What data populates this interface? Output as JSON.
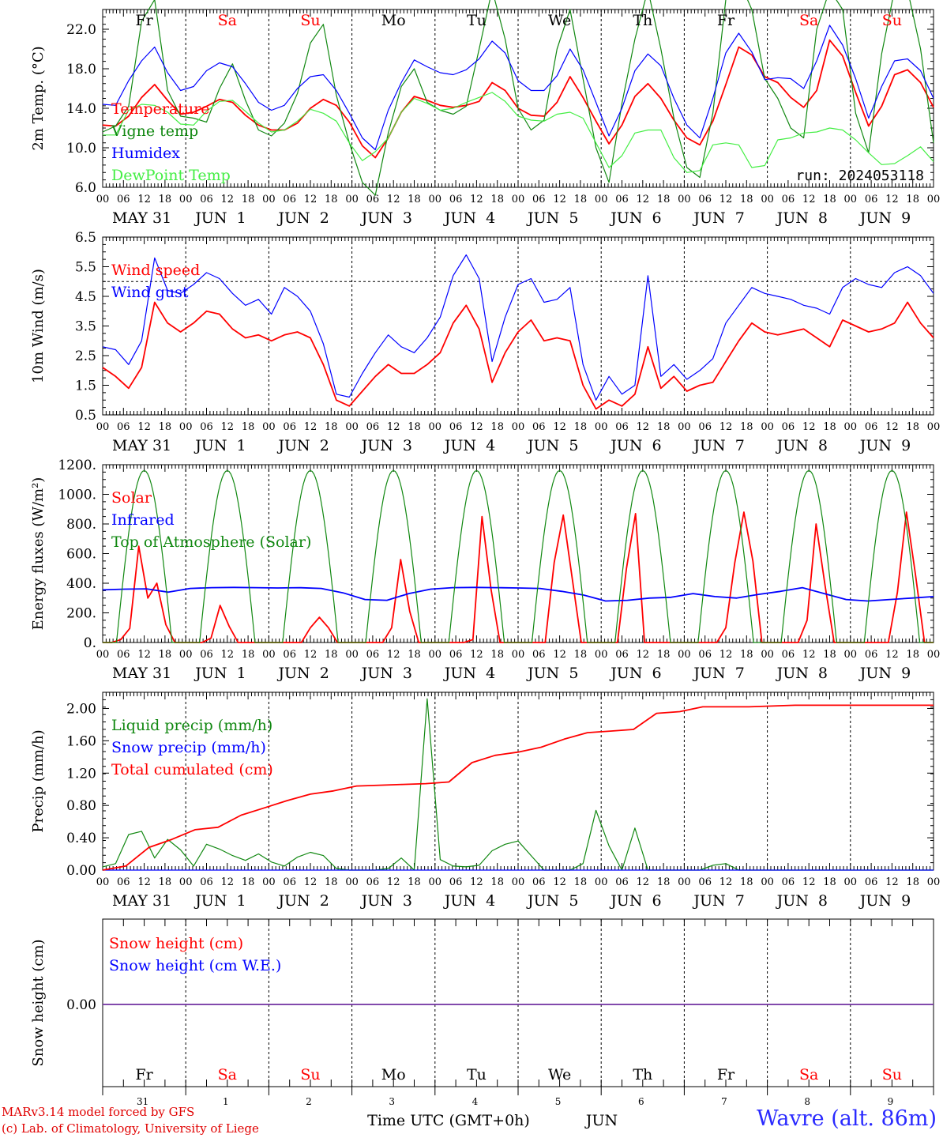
{
  "days": {
    "weekday": [
      "Fr",
      "Sa",
      "Su",
      "Mo",
      "Tu",
      "We",
      "Th",
      "Fr",
      "Sa",
      "Su"
    ],
    "weekend": [
      false,
      true,
      true,
      false,
      false,
      false,
      false,
      false,
      true,
      true
    ],
    "dates": [
      "MAY 31",
      "JUN  1",
      "JUN  2",
      "JUN  3",
      "JUN  4",
      "JUN  5",
      "JUN  6",
      "JUN  7",
      "JUN  8",
      "JUN  9"
    ],
    "daynum": [
      "31",
      "1",
      "2",
      "3",
      "4",
      "5",
      "6",
      "7",
      "8",
      "9"
    ],
    "hours": [
      "00",
      "06",
      "12",
      "18"
    ],
    "end_hour": "00"
  },
  "colors": {
    "red": "#ff0000",
    "green": "#118811",
    "blue": "#0000ff",
    "lightgreen": "#44ee44",
    "purple": "#7030a0",
    "axis": "#000000",
    "weekend_label": "#ff0000"
  },
  "run_label": "run: 2024053118",
  "footer": {
    "xlabel": "Time UTC (GMT+0h)",
    "month": "JUN",
    "credit_line1": "MARv3.14 model forced by GFS",
    "credit_line2": "(c) Lab. of Climatology, University of Liege",
    "location": "Wavre (alt. 86m)"
  },
  "chart_data": [
    {
      "type": "line",
      "ylabel": "2m Temp. (°C)",
      "ylim": [
        6.0,
        24.0
      ],
      "yticks": [
        "6.0",
        "10.0",
        "14.0",
        "18.0",
        "22.0"
      ],
      "grid": false,
      "series": [
        {
          "name": "Temperature",
          "color": "red",
          "values": [
            12.3,
            12.2,
            13.2,
            15.1,
            16.4,
            14.8,
            13.4,
            13.6,
            14.2,
            14.9,
            14.6,
            13.3,
            12.3,
            11.8,
            11.8,
            12.5,
            14.0,
            14.9,
            14.3,
            12.6,
            10.2,
            9.0,
            11.0,
            13.6,
            15.2,
            14.8,
            14.3,
            14.1,
            14.3,
            14.7,
            16.6,
            15.8,
            14.0,
            13.3,
            13.2,
            14.6,
            17.2,
            15.1,
            12.7,
            10.4,
            12.3,
            15.2,
            16.5,
            15.0,
            12.8,
            11.0,
            10.3,
            12.7,
            16.4,
            20.2,
            19.4,
            17.2,
            16.6,
            15.1,
            14.1,
            15.8,
            20.9,
            19.3,
            15.6,
            12.2,
            14.2,
            17.4,
            17.9,
            16.6,
            14.1
          ]
        },
        {
          "name": "Vigne temp",
          "color": "green",
          "values": [
            11.6,
            12.2,
            14.2,
            22.8,
            25.0,
            15.8,
            13.2,
            13.0,
            12.6,
            16.0,
            18.5,
            14.8,
            11.8,
            11.2,
            12.5,
            15.5,
            20.6,
            22.5,
            15.3,
            10.5,
            6.5,
            5.2,
            11.5,
            16.2,
            18.0,
            14.6,
            13.8,
            13.4,
            14.2,
            20.0,
            26.0,
            21.0,
            14.0,
            11.8,
            12.8,
            20.0,
            24.0,
            17.0,
            10.0,
            6.5,
            14.5,
            21.0,
            26.0,
            20.0,
            13.0,
            8.0,
            7.0,
            13.5,
            25.0,
            27.0,
            24.0,
            17.0,
            15.0,
            12.0,
            11.0,
            22.0,
            26.0,
            24.0,
            13.5,
            9.5,
            19.5,
            26.0,
            26.0,
            20.0,
            10.5
          ]
        },
        {
          "name": "Humidex",
          "color": "blue",
          "values": [
            14.4,
            14.3,
            16.8,
            18.8,
            20.2,
            17.6,
            15.8,
            16.2,
            17.8,
            18.6,
            18.2,
            16.5,
            14.6,
            13.8,
            14.3,
            16.0,
            17.2,
            17.4,
            15.8,
            13.5,
            11.0,
            9.8,
            13.8,
            16.6,
            18.9,
            18.2,
            17.6,
            17.4,
            17.9,
            19.0,
            20.8,
            19.6,
            16.8,
            15.8,
            15.8,
            17.3,
            20.0,
            17.9,
            14.6,
            11.2,
            14.0,
            17.8,
            19.5,
            18.3,
            15.0,
            12.3,
            11.0,
            15.0,
            19.6,
            21.6,
            19.7,
            16.9,
            17.1,
            17.0,
            16.0,
            18.8,
            22.4,
            20.4,
            17.0,
            13.0,
            16.2,
            18.8,
            19.0,
            17.8,
            15.0
          ]
        },
        {
          "name": "DewPoint Temp",
          "color": "lightgreen",
          "values": [
            11.3,
            11.3,
            13.8,
            14.4,
            14.3,
            13.6,
            12.4,
            12.3,
            13.7,
            14.7,
            14.8,
            13.7,
            12.5,
            11.6,
            11.8,
            12.7,
            13.9,
            13.5,
            12.7,
            10.5,
            8.7,
            9.6,
            11.0,
            13.6,
            15.0,
            14.5,
            13.8,
            14.0,
            14.6,
            15.1,
            15.6,
            14.7,
            13.2,
            12.8,
            12.7,
            13.4,
            13.6,
            13.0,
            10.5,
            8.0,
            9.2,
            11.5,
            11.8,
            11.8,
            9.0,
            7.5,
            7.7,
            10.3,
            10.5,
            10.3,
            8.0,
            8.2,
            10.8,
            11.0,
            11.5,
            11.6,
            12.0,
            11.8,
            10.8,
            9.5,
            8.3,
            8.4,
            9.2,
            10.1,
            8.6
          ]
        }
      ]
    },
    {
      "type": "line",
      "ylabel": "10m Wind (m/s)",
      "ylim": [
        0.5,
        6.5
      ],
      "yticks": [
        "0.5",
        "1.5",
        "2.5",
        "3.5",
        "4.5",
        "5.5",
        "6.5"
      ],
      "reference_line": 5.0,
      "grid": false,
      "series": [
        {
          "name": "Wind speed",
          "color": "red",
          "values": [
            2.1,
            1.8,
            1.4,
            2.1,
            4.3,
            3.6,
            3.3,
            3.6,
            4.0,
            3.9,
            3.4,
            3.1,
            3.2,
            3.0,
            3.2,
            3.3,
            3.1,
            2.2,
            1.0,
            0.8,
            1.3,
            1.8,
            2.2,
            1.9,
            1.9,
            2.2,
            2.6,
            3.6,
            4.2,
            3.4,
            1.6,
            2.6,
            3.3,
            3.7,
            3.0,
            3.1,
            3.0,
            1.5,
            0.7,
            1.0,
            0.8,
            1.2,
            2.8,
            1.4,
            1.8,
            1.3,
            1.5,
            1.6,
            2.3,
            3.0,
            3.6,
            3.3,
            3.2,
            3.3,
            3.4,
            3.1,
            2.8,
            3.7,
            3.5,
            3.3,
            3.4,
            3.6,
            4.3,
            3.6,
            3.1
          ]
        },
        {
          "name": "Wind gust",
          "color": "blue",
          "values": [
            2.8,
            2.7,
            2.2,
            3.0,
            5.8,
            4.7,
            4.6,
            4.9,
            5.3,
            5.1,
            4.6,
            4.2,
            4.4,
            3.9,
            4.8,
            4.5,
            4.0,
            2.9,
            1.2,
            1.1,
            1.9,
            2.6,
            3.2,
            2.8,
            2.6,
            3.1,
            3.8,
            5.2,
            5.9,
            5.1,
            2.3,
            3.8,
            4.9,
            5.1,
            4.3,
            4.4,
            4.8,
            2.2,
            1.0,
            1.8,
            1.2,
            1.5,
            5.2,
            1.8,
            2.2,
            1.7,
            2.0,
            2.4,
            3.6,
            4.2,
            4.8,
            4.6,
            4.5,
            4.4,
            4.2,
            4.1,
            3.9,
            4.8,
            5.1,
            4.9,
            4.8,
            5.3,
            5.5,
            5.2,
            4.6
          ]
        }
      ]
    },
    {
      "type": "line",
      "ylabel": "Energy fluxes (W/m²)",
      "ylim": [
        0,
        1200
      ],
      "yticks": [
        "0.",
        "200.",
        "400.",
        "600.",
        "800.",
        "1000.",
        "1200."
      ],
      "grid": false,
      "series": [
        {
          "name": "Solar",
          "color": "red",
          "values": [
            0,
            0,
            20,
            95,
            650,
            300,
            400,
            120,
            0,
            0,
            0,
            0,
            30,
            250,
            110,
            0,
            0,
            0,
            0,
            0,
            0,
            0,
            0,
            100,
            170,
            100,
            0,
            0,
            0,
            0,
            0,
            0,
            100,
            560,
            210,
            0,
            0,
            0,
            0,
            0,
            0,
            20,
            850,
            360,
            0,
            0,
            0,
            0,
            0,
            0,
            540,
            860,
            430,
            0,
            0,
            0,
            0,
            0,
            500,
            870,
            0,
            0,
            0,
            0,
            0,
            0,
            0,
            0,
            0,
            100,
            540,
            880,
            550,
            0,
            0,
            0,
            0,
            0,
            150,
            800,
            380,
            0,
            0,
            0,
            0,
            0,
            0,
            0,
            340,
            880,
            460,
            0,
            0
          ]
        },
        {
          "name": "Infrared",
          "color": "blue",
          "values": [
            355,
            360,
            362,
            340,
            365,
            370,
            372,
            370,
            368,
            370,
            365,
            335,
            290,
            285,
            330,
            360,
            370,
            372,
            370,
            368,
            365,
            345,
            320,
            280,
            285,
            300,
            305,
            330,
            310,
            300,
            325,
            345,
            370,
            330,
            290,
            280,
            290,
            300,
            310
          ]
        },
        {
          "name": "Top of Atmosphere (Solar)",
          "color": "green",
          "peak": 1160
        }
      ]
    },
    {
      "type": "line",
      "ylabel": "Precip (mm/h)",
      "ylim": [
        0.0,
        2.2
      ],
      "yticks": [
        "0.00",
        "0.40",
        "0.80",
        "1.20",
        "1.60",
        "2.00"
      ],
      "grid": false,
      "series": [
        {
          "name": "Liquid precip (mm/h)",
          "color": "green",
          "values": [
            0.04,
            0.08,
            0.44,
            0.48,
            0.15,
            0.38,
            0.25,
            0.05,
            0.32,
            0.26,
            0.18,
            0.12,
            0.2,
            0.1,
            0.05,
            0.16,
            0.22,
            0.18,
            0.02,
            0.0,
            0.0,
            0.0,
            0.02,
            0.15,
            0.0,
            2.12,
            0.13,
            0.05,
            0.04,
            0.06,
            0.24,
            0.32,
            0.36,
            0.18,
            0.0,
            0.0,
            0.0,
            0.08,
            0.74,
            0.3,
            0.0,
            0.52,
            0.0,
            0.0,
            0.0,
            0.0,
            0.0,
            0.06,
            0.08,
            0.0,
            0.0,
            0.0,
            0.0,
            0.0,
            0.0,
            0.0,
            0.0,
            0.0,
            0.0,
            0.0,
            0.0,
            0.0,
            0.0,
            0.0,
            0.0
          ]
        },
        {
          "name": "Snow precip (mm/h)",
          "color": "blue",
          "values": [
            0.0,
            0.0
          ]
        },
        {
          "name": "Total cumulated (cm)",
          "color": "red",
          "values": [
            0.0,
            0.05,
            0.28,
            0.38,
            0.5,
            0.53,
            0.68,
            0.77,
            0.86,
            0.94,
            0.98,
            1.04,
            1.05,
            1.06,
            1.07,
            1.09,
            1.33,
            1.42,
            1.46,
            1.52,
            1.62,
            1.7,
            1.72,
            1.74,
            1.94,
            1.96,
            2.02,
            2.02,
            2.02,
            2.03,
            2.04,
            2.04,
            2.04,
            2.04,
            2.04,
            2.04,
            2.04
          ]
        }
      ]
    },
    {
      "type": "line",
      "ylabel": "Snow height (cm)",
      "yticks": [
        "0.00"
      ],
      "grid": false,
      "series": [
        {
          "name": "Snow height (cm)",
          "color": "red",
          "values": [
            0.0,
            0.0
          ]
        },
        {
          "name": "Snow height (cm W.E.)",
          "color": "blue",
          "values": [
            0.0,
            0.0
          ]
        }
      ]
    }
  ]
}
